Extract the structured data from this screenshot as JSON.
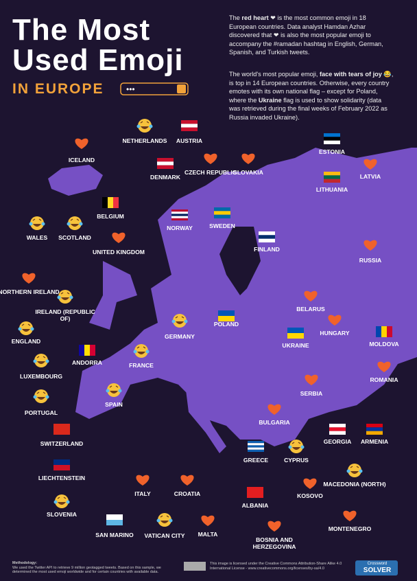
{
  "header": {
    "title_line1": "The Most",
    "title_line2": "Used Emoji",
    "title_line3": "IN EUROPE"
  },
  "intro": [
    [
      {
        "text": "The "
      },
      {
        "text": "red heart",
        "bold": true
      },
      {
        "text": " ❤ is the most common emoji in 18 European countries. Data analyst Hamdan Azhar discovered that ❤ is also the most popular emoji to accompany the #ramadan hashtag in English, German, Spanish, and Turkish tweets."
      }
    ],
    [
      {
        "text": "The world's most popular emoji, "
      },
      {
        "text": "face with tears of joy",
        "bold": true
      },
      {
        "text": " 😂, is top in 14 European countries. Otherwise, every country emotes with its own national flag – except for Poland, where the "
      },
      {
        "text": "Ukraine",
        "bold": true
      },
      {
        "text": " flag is used to show solidarity (data was retrieved during the final weeks of February 2022 as Russia invaded Ukraine)."
      }
    ]
  ],
  "countries": [
    {
      "label": "ICELAND",
      "emoji": "heart"
    },
    {
      "label": "NETHERLANDS",
      "emoji": "joy"
    },
    {
      "label": "AUSTRIA",
      "emoji": "flag",
      "flag": [
        "#c8102e",
        "#ffffff",
        "#c8102e"
      ]
    },
    {
      "label": "DENMARK",
      "emoji": "flag",
      "flag": [
        "#c8102e",
        "#ffffff",
        "#c8102e"
      ]
    },
    {
      "label": "CZECH REPUBLIC",
      "emoji": "heart"
    },
    {
      "label": "SLOVAKIA",
      "emoji": "heart"
    },
    {
      "label": "ESTONIA",
      "emoji": "flag",
      "flag": [
        "#0072ce",
        "#000000",
        "#ffffff"
      ]
    },
    {
      "label": "LATVIA",
      "emoji": "heart"
    },
    {
      "label": "LITHUANIA",
      "emoji": "flag",
      "flag": [
        "#fdb913",
        "#006a44",
        "#c1272d"
      ]
    },
    {
      "label": "BELGIUM",
      "emoji": "flag",
      "flag": [
        "#000000",
        "#fdda24",
        "#ef3340"
      ],
      "dir": "v"
    },
    {
      "label": "NORWAY",
      "emoji": "flag",
      "flag": [
        "#ba0c2f",
        "#ffffff",
        "#00205b",
        "#ffffff",
        "#ba0c2f"
      ]
    },
    {
      "label": "SWEDEN",
      "emoji": "flag",
      "flag": [
        "#006aa7",
        "#fecc00",
        "#006aa7"
      ]
    },
    {
      "label": "WALES",
      "emoji": "joy"
    },
    {
      "label": "SCOTLAND",
      "emoji": "joy"
    },
    {
      "label": "UNITED KINGDOM",
      "emoji": "heart"
    },
    {
      "label": "FINLAND",
      "emoji": "flag",
      "flag": [
        "#ffffff",
        "#002f6c",
        "#ffffff"
      ]
    },
    {
      "label": "RUSSIA",
      "emoji": "heart"
    },
    {
      "label": "NORTHERN IRELAND",
      "emoji": "heart"
    },
    {
      "label": "IRELAND (REPUBLIC OF)",
      "emoji": "joy"
    },
    {
      "label": "BELARUS",
      "emoji": "heart"
    },
    {
      "label": "ENGLAND",
      "emoji": "joy"
    },
    {
      "label": "GERMANY",
      "emoji": "joy"
    },
    {
      "label": "POLAND",
      "emoji": "flag",
      "flag": [
        "#0057b7",
        "#ffd700"
      ]
    },
    {
      "label": "HUNGARY",
      "emoji": "heart"
    },
    {
      "label": "LUXEMBOURG",
      "emoji": "joy"
    },
    {
      "label": "ANDORRA",
      "emoji": "flag",
      "flag": [
        "#10069f",
        "#fedd00",
        "#d50032"
      ],
      "dir": "v"
    },
    {
      "label": "FRANCE",
      "emoji": "joy"
    },
    {
      "label": "UKRAINE",
      "emoji": "flag",
      "flag": [
        "#0057b7",
        "#ffd700"
      ]
    },
    {
      "label": "MOLDOVA",
      "emoji": "flag",
      "flag": [
        "#0046ae",
        "#ffd200",
        "#cc092f"
      ],
      "dir": "v"
    },
    {
      "label": "ROMANIA",
      "emoji": "heart"
    },
    {
      "label": "SERBIA",
      "emoji": "heart"
    },
    {
      "label": "PORTUGAL",
      "emoji": "joy"
    },
    {
      "label": "SPAIN",
      "emoji": "joy"
    },
    {
      "label": "BULGARIA",
      "emoji": "heart"
    },
    {
      "label": "SWITZERLAND",
      "emoji": "flag",
      "flag": [
        "#da291c"
      ]
    },
    {
      "label": "GEORGIA",
      "emoji": "flag",
      "flag": [
        "#ffffff",
        "#e8112d",
        "#ffffff"
      ]
    },
    {
      "label": "ARMENIA",
      "emoji": "flag",
      "flag": [
        "#d90012",
        "#0033a0",
        "#f2a800"
      ]
    },
    {
      "label": "GREECE",
      "emoji": "flag",
      "flag": [
        "#0d5eaf",
        "#ffffff",
        "#0d5eaf",
        "#ffffff",
        "#0d5eaf"
      ]
    },
    {
      "label": "CYPRUS",
      "emoji": "joy"
    },
    {
      "label": "LIECHTENSTEIN",
      "emoji": "flag",
      "flag": [
        "#002b7f",
        "#ce1126"
      ]
    },
    {
      "label": "MACEDONIA (NORTH)",
      "emoji": "joy"
    },
    {
      "label": "ITALY",
      "emoji": "heart"
    },
    {
      "label": "CROATIA",
      "emoji": "heart"
    },
    {
      "label": "KOSOVO",
      "emoji": "heart"
    },
    {
      "label": "SLOVENIA",
      "emoji": "joy"
    },
    {
      "label": "ALBANIA",
      "emoji": "flag",
      "flag": [
        "#e41e20"
      ]
    },
    {
      "label": "SAN MARINO",
      "emoji": "flag",
      "flag": [
        "#ffffff",
        "#5eb6e4"
      ]
    },
    {
      "label": "VATICAN CITY",
      "emoji": "joy"
    },
    {
      "label": "MALTA",
      "emoji": "heart"
    },
    {
      "label": "BOSNIA AND HERZEGOVINA",
      "emoji": "heart"
    },
    {
      "label": "MONTENEGRO",
      "emoji": "heart"
    }
  ],
  "footer": {
    "methodology_title": "Methodology:",
    "methodology": "We used the Twitter API to retrieve 9 million geotagged tweets. Based on this sample, we determined the most used emoji worldwide and for certain countries with available data.",
    "license": "This image is licensed under the Creative Commons Attribution-Share Alike 4.0 International License - www.creativecommons.org/licenses/by-sa/4.0",
    "logo_top": "Crossword",
    "logo_bottom": "SOLVER"
  }
}
